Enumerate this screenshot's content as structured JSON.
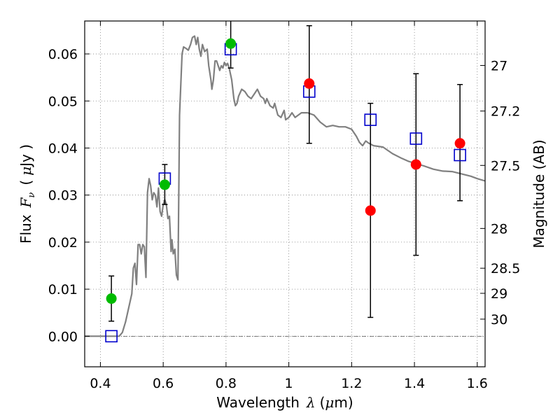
{
  "chart_data": {
    "type": "scatter",
    "xlabel": {
      "prefix": "Wavelength",
      "symbol": "λ",
      "unit_open": "(",
      "unit_mu": "μ",
      "unit_rest": "m)"
    },
    "ylabel": {
      "prefix": "Flux",
      "symbol": "F",
      "subscript": "ν",
      "unit_open": "(",
      "unit_mu": "μ",
      "unit_rest": "Jy )"
    },
    "y2label": "Magnitude (AB)",
    "xlim": [
      0.35,
      1.625
    ],
    "ylim": [
      -0.0065,
      0.067
    ],
    "xticks": [
      {
        "value": 0.4,
        "label": "0.4"
      },
      {
        "value": 0.6,
        "label": "0.6"
      },
      {
        "value": 0.8,
        "label": "0.8"
      },
      {
        "value": 1.0,
        "label": "1"
      },
      {
        "value": 1.2,
        "label": "1.2"
      },
      {
        "value": 1.4,
        "label": "1.4"
      },
      {
        "value": 1.6,
        "label": "1.6"
      }
    ],
    "yticks": [
      {
        "value": 0.0,
        "label": "0.00"
      },
      {
        "value": 0.01,
        "label": "0.01"
      },
      {
        "value": 0.02,
        "label": "0.02"
      },
      {
        "value": 0.03,
        "label": "0.03"
      },
      {
        "value": 0.04,
        "label": "0.04"
      },
      {
        "value": 0.05,
        "label": "0.05"
      },
      {
        "value": 0.06,
        "label": "0.06"
      }
    ],
    "y2ticks": [
      {
        "value": 27,
        "label": "27"
      },
      {
        "value": 27.2,
        "label": "27.2"
      },
      {
        "value": 27.5,
        "label": "27.5"
      },
      {
        "value": 28,
        "label": "28"
      },
      {
        "value": 28.5,
        "label": "28.5"
      },
      {
        "value": 29,
        "label": "29"
      },
      {
        "value": 30,
        "label": "30"
      }
    ],
    "grid": true,
    "zero_line": 0.0,
    "colors": {
      "model": "#808080",
      "green": "#00bb00",
      "red": "#ff0000",
      "square": "#0000cc",
      "errorbar": "#000000",
      "grid": "#808080"
    },
    "series": [
      {
        "kind": "line",
        "points": [
          [
            0.35,
            0.0
          ],
          [
            0.46,
            0.0
          ],
          [
            0.47,
            0.0008
          ],
          [
            0.48,
            0.003
          ],
          [
            0.49,
            0.006
          ],
          [
            0.5,
            0.009
          ],
          [
            0.505,
            0.0145
          ],
          [
            0.51,
            0.0155
          ],
          [
            0.515,
            0.011
          ],
          [
            0.52,
            0.0195
          ],
          [
            0.525,
            0.0195
          ],
          [
            0.53,
            0.0175
          ],
          [
            0.535,
            0.0195
          ],
          [
            0.54,
            0.019
          ],
          [
            0.545,
            0.0125
          ],
          [
            0.55,
            0.0305
          ],
          [
            0.555,
            0.0335
          ],
          [
            0.56,
            0.032
          ],
          [
            0.565,
            0.029
          ],
          [
            0.57,
            0.0305
          ],
          [
            0.575,
            0.03
          ],
          [
            0.58,
            0.0275
          ],
          [
            0.585,
            0.0315
          ],
          [
            0.59,
            0.0265
          ],
          [
            0.595,
            0.0255
          ],
          [
            0.6,
            0.028
          ],
          [
            0.605,
            0.029
          ],
          [
            0.61,
            0.028
          ],
          [
            0.615,
            0.025
          ],
          [
            0.62,
            0.0255
          ],
          [
            0.625,
            0.018
          ],
          [
            0.628,
            0.0205
          ],
          [
            0.632,
            0.0175
          ],
          [
            0.637,
            0.0185
          ],
          [
            0.642,
            0.013
          ],
          [
            0.647,
            0.012
          ],
          [
            0.652,
            0.047
          ],
          [
            0.66,
            0.06
          ],
          [
            0.665,
            0.0615
          ],
          [
            0.672,
            0.0612
          ],
          [
            0.68,
            0.0608
          ],
          [
            0.687,
            0.062
          ],
          [
            0.693,
            0.0635
          ],
          [
            0.7,
            0.0638
          ],
          [
            0.705,
            0.062
          ],
          [
            0.71,
            0.0635
          ],
          [
            0.715,
            0.061
          ],
          [
            0.72,
            0.0595
          ],
          [
            0.725,
            0.062
          ],
          [
            0.732,
            0.0605
          ],
          [
            0.74,
            0.061
          ],
          [
            0.745,
            0.0575
          ],
          [
            0.752,
            0.0545
          ],
          [
            0.755,
            0.0525
          ],
          [
            0.76,
            0.0545
          ],
          [
            0.765,
            0.0585
          ],
          [
            0.77,
            0.0585
          ],
          [
            0.775,
            0.0575
          ],
          [
            0.78,
            0.0565
          ],
          [
            0.785,
            0.0575
          ],
          [
            0.79,
            0.057
          ],
          [
            0.795,
            0.0582
          ],
          [
            0.8,
            0.0575
          ],
          [
            0.805,
            0.058
          ],
          [
            0.81,
            0.057
          ],
          [
            0.818,
            0.0545
          ],
          [
            0.825,
            0.0505
          ],
          [
            0.83,
            0.049
          ],
          [
            0.835,
            0.0495
          ],
          [
            0.84,
            0.051
          ],
          [
            0.85,
            0.0525
          ],
          [
            0.86,
            0.052
          ],
          [
            0.87,
            0.051
          ],
          [
            0.88,
            0.0505
          ],
          [
            0.89,
            0.0515
          ],
          [
            0.9,
            0.0525
          ],
          [
            0.91,
            0.051
          ],
          [
            0.92,
            0.0505
          ],
          [
            0.925,
            0.0495
          ],
          [
            0.93,
            0.0505
          ],
          [
            0.94,
            0.049
          ],
          [
            0.95,
            0.0485
          ],
          [
            0.955,
            0.0495
          ],
          [
            0.965,
            0.047
          ],
          [
            0.975,
            0.0465
          ],
          [
            0.985,
            0.048
          ],
          [
            0.99,
            0.046
          ],
          [
            1.0,
            0.0465
          ],
          [
            1.01,
            0.0475
          ],
          [
            1.02,
            0.0465
          ],
          [
            1.04,
            0.0475
          ],
          [
            1.06,
            0.0475
          ],
          [
            1.08,
            0.047
          ],
          [
            1.1,
            0.0455
          ],
          [
            1.12,
            0.0445
          ],
          [
            1.14,
            0.0448
          ],
          [
            1.16,
            0.0445
          ],
          [
            1.18,
            0.0445
          ],
          [
            1.2,
            0.044
          ],
          [
            1.215,
            0.0425
          ],
          [
            1.225,
            0.0412
          ],
          [
            1.235,
            0.0405
          ],
          [
            1.245,
            0.0415
          ],
          [
            1.255,
            0.041
          ],
          [
            1.27,
            0.0405
          ],
          [
            1.3,
            0.0402
          ],
          [
            1.33,
            0.0388
          ],
          [
            1.36,
            0.0378
          ],
          [
            1.38,
            0.0372
          ],
          [
            1.4,
            0.0368
          ],
          [
            1.43,
            0.0362
          ],
          [
            1.46,
            0.0355
          ],
          [
            1.49,
            0.0351
          ],
          [
            1.52,
            0.035
          ],
          [
            1.55,
            0.0345
          ],
          [
            1.58,
            0.034
          ],
          [
            1.6,
            0.0335
          ],
          [
            1.625,
            0.033
          ]
        ]
      },
      {
        "kind": "errorbar",
        "points": [
          {
            "x": 0.435,
            "low": 0.0032,
            "high": 0.0128
          },
          {
            "x": 0.605,
            "low": 0.028,
            "high": 0.0365
          },
          {
            "x": 0.815,
            "low": 0.057,
            "high": 0.0675
          },
          {
            "x": 1.065,
            "low": 0.041,
            "high": 0.066
          },
          {
            "x": 1.26,
            "low": 0.004,
            "high": 0.0495
          },
          {
            "x": 1.405,
            "low": 0.0172,
            "high": 0.0558
          },
          {
            "x": 1.545,
            "low": 0.0288,
            "high": 0.0535
          }
        ]
      },
      {
        "kind": "square",
        "points": [
          [
            0.435,
            0.0
          ],
          [
            0.605,
            0.0335
          ],
          [
            0.815,
            0.061
          ],
          [
            1.065,
            0.052
          ],
          [
            1.26,
            0.046
          ],
          [
            1.405,
            0.042
          ],
          [
            1.545,
            0.0385
          ]
        ]
      },
      {
        "kind": "circle",
        "color": "green",
        "points": [
          [
            0.435,
            0.008
          ],
          [
            0.605,
            0.0322
          ],
          [
            0.815,
            0.0622
          ]
        ]
      },
      {
        "kind": "circle",
        "color": "red",
        "points": [
          [
            1.065,
            0.0537
          ],
          [
            1.26,
            0.0267
          ],
          [
            1.405,
            0.0365
          ],
          [
            1.545,
            0.041
          ]
        ]
      }
    ]
  }
}
